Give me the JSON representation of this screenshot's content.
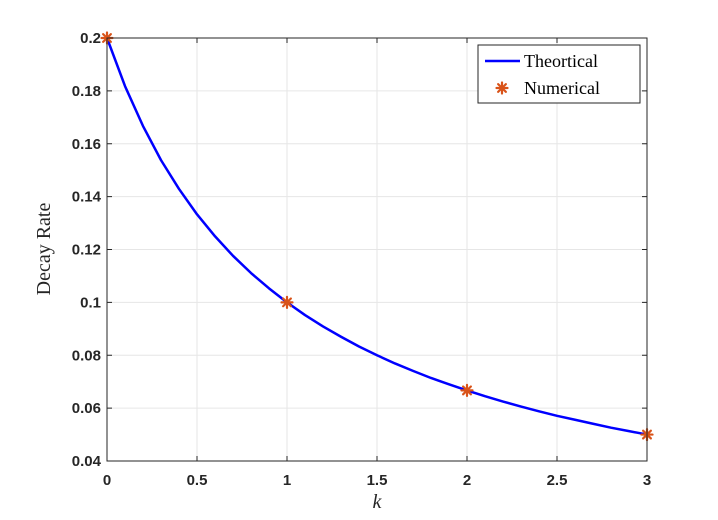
{
  "chart_data": {
    "type": "line",
    "xlabel": "k",
    "ylabel": "Decay Rate",
    "xlim": [
      0,
      3
    ],
    "ylim": [
      0.04,
      0.2
    ],
    "x_ticks": [
      0,
      0.5,
      1,
      1.5,
      2,
      2.5,
      3
    ],
    "x_tick_labels": [
      "0",
      "0.5",
      "1",
      "1.5",
      "2",
      "2.5",
      "3"
    ],
    "y_ticks": [
      0.04,
      0.06,
      0.08,
      0.1,
      0.12,
      0.14,
      0.16,
      0.18,
      0.2
    ],
    "y_tick_labels": [
      "0.04",
      "0.06",
      "0.08",
      "0.1",
      "0.12",
      "0.14",
      "0.16",
      "0.18",
      "0.2"
    ],
    "grid": true,
    "legend_position": "top-right",
    "series": [
      {
        "name": "Theortical",
        "kind": "line",
        "color": "#0000ff",
        "x": [
          0,
          0.1,
          0.2,
          0.3,
          0.4,
          0.5,
          0.6,
          0.7,
          0.8,
          0.9,
          1.0,
          1.1,
          1.2,
          1.3,
          1.4,
          1.5,
          1.6,
          1.7,
          1.8,
          1.9,
          2.0,
          2.1,
          2.2,
          2.3,
          2.4,
          2.5,
          2.6,
          2.7,
          2.8,
          2.9,
          3.0
        ],
        "y": [
          0.2,
          0.1818,
          0.1667,
          0.1538,
          0.1429,
          0.1333,
          0.125,
          0.1176,
          0.1111,
          0.1053,
          0.1,
          0.0952,
          0.0909,
          0.087,
          0.0833,
          0.08,
          0.0769,
          0.0741,
          0.0714,
          0.069,
          0.0667,
          0.0645,
          0.0625,
          0.0606,
          0.0588,
          0.0571,
          0.0556,
          0.0541,
          0.0526,
          0.0513,
          0.05
        ]
      },
      {
        "name": "Numerical",
        "kind": "marker",
        "marker": "asterisk",
        "color": "#d95319",
        "x": [
          0,
          1,
          2,
          3
        ],
        "y": [
          0.2,
          0.1,
          0.0667,
          0.05
        ]
      }
    ]
  }
}
